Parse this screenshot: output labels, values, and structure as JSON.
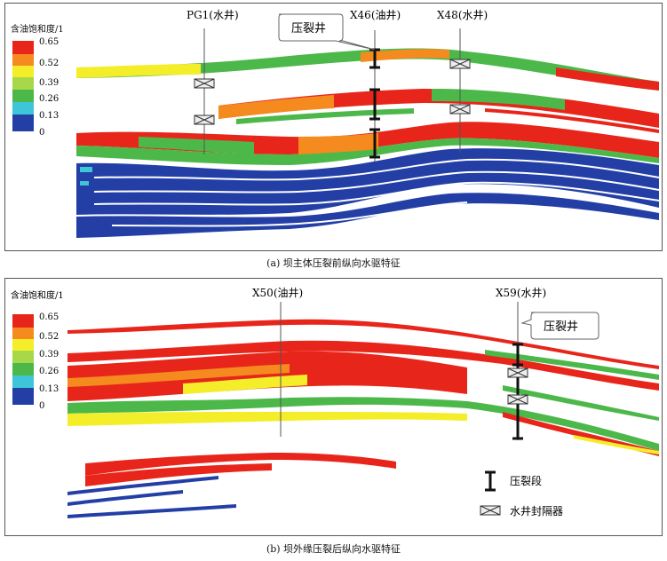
{
  "legend": {
    "title": "含油饱和度/1",
    "ticks": [
      "0.65",
      "0.52",
      "0.39",
      "0.26",
      "0.13",
      "0"
    ]
  },
  "panel_a": {
    "caption": "(a)  坝主体压裂前纵向水驱特征",
    "wells": [
      {
        "name": "PG1(水井)"
      },
      {
        "name": "X46(油井)"
      },
      {
        "name": "X48(水井)"
      }
    ],
    "callout": "压裂井"
  },
  "panel_b": {
    "caption": "(b) 坝外缘压裂后纵向水驱特征",
    "wells": [
      {
        "name": "X50(油井)"
      },
      {
        "name": "X59(水井)"
      }
    ],
    "callout": "压裂井",
    "key": {
      "frac_label": "压裂段",
      "packer_label": "水井封隔器"
    }
  },
  "colors": {
    "red": "#e8251b",
    "orange": "#f58a1f",
    "yellow": "#f4ee2a",
    "lightgreen": "#a6d84a",
    "green": "#4db84a",
    "cyan": "#3ec6d8",
    "blue": "#233fa6"
  }
}
